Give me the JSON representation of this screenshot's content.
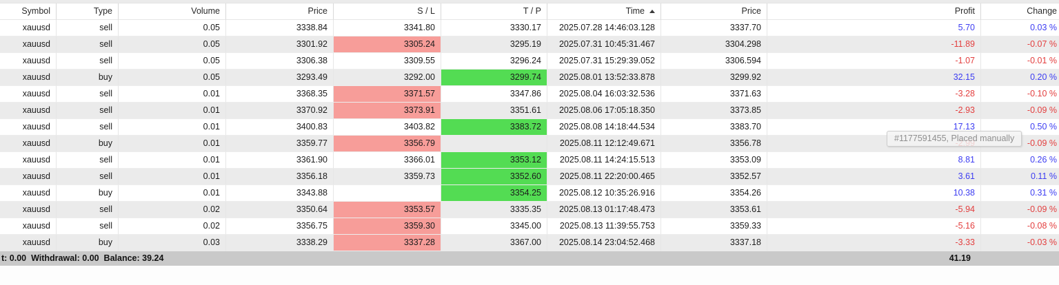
{
  "table": {
    "columns": [
      {
        "key": "symbol",
        "label": "Symbol"
      },
      {
        "key": "type",
        "label": "Type"
      },
      {
        "key": "volume",
        "label": "Volume"
      },
      {
        "key": "price",
        "label": "Price"
      },
      {
        "key": "sl",
        "label": "S / L"
      },
      {
        "key": "tp",
        "label": "T / P"
      },
      {
        "key": "time",
        "label": "Time",
        "sort": "asc"
      },
      {
        "key": "price2",
        "label": "Price"
      },
      {
        "key": "profit",
        "label": "Profit"
      },
      {
        "key": "change",
        "label": "Change"
      }
    ],
    "rows": [
      {
        "symbol": "xauusd",
        "type": "sell",
        "volume": "0.05",
        "price": "3338.84",
        "sl": "3341.80",
        "sl_hit": false,
        "tp": "3330.17",
        "tp_hit": false,
        "time": "2025.07.28 14:46:03.128",
        "price2": "3337.70",
        "profit": "5.70",
        "change": "0.03 %"
      },
      {
        "symbol": "xauusd",
        "type": "sell",
        "volume": "0.05",
        "price": "3301.92",
        "sl": "3305.24",
        "sl_hit": true,
        "tp": "3295.19",
        "tp_hit": false,
        "time": "2025.07.31 10:45:31.467",
        "price2": "3304.298",
        "profit": "-11.89",
        "change": "-0.07 %"
      },
      {
        "symbol": "xauusd",
        "type": "sell",
        "volume": "0.05",
        "price": "3306.38",
        "sl": "3309.55",
        "sl_hit": false,
        "tp": "3296.24",
        "tp_hit": false,
        "time": "2025.07.31 15:29:39.052",
        "price2": "3306.594",
        "profit": "-1.07",
        "change": "-0.01 %"
      },
      {
        "symbol": "xauusd",
        "type": "buy",
        "volume": "0.05",
        "price": "3293.49",
        "sl": "3292.00",
        "sl_hit": false,
        "tp": "3299.74",
        "tp_hit": true,
        "time": "2025.08.01 13:52:33.878",
        "price2": "3299.92",
        "profit": "32.15",
        "change": "0.20 %"
      },
      {
        "symbol": "xauusd",
        "type": "sell",
        "volume": "0.01",
        "price": "3368.35",
        "sl": "3371.57",
        "sl_hit": true,
        "tp": "3347.86",
        "tp_hit": false,
        "time": "2025.08.04 16:03:32.536",
        "price2": "3371.63",
        "profit": "-3.28",
        "change": "-0.10 %"
      },
      {
        "symbol": "xauusd",
        "type": "sell",
        "volume": "0.01",
        "price": "3370.92",
        "sl": "3373.91",
        "sl_hit": true,
        "tp": "3351.61",
        "tp_hit": false,
        "time": "2025.08.06 17:05:18.350",
        "price2": "3373.85",
        "profit": "-2.93",
        "change": "-0.09 %"
      },
      {
        "symbol": "xauusd",
        "type": "sell",
        "volume": "0.01",
        "price": "3400.83",
        "sl": "3403.82",
        "sl_hit": false,
        "tp": "3383.72",
        "tp_hit": true,
        "time": "2025.08.08 14:18:44.534",
        "price2": "3383.70",
        "profit": "17.13",
        "change": "0.50 %"
      },
      {
        "symbol": "xauusd",
        "type": "buy",
        "volume": "0.01",
        "price": "3359.77",
        "sl": "3356.79",
        "sl_hit": true,
        "tp": "",
        "tp_hit": false,
        "time": "2025.08.11 12:12:49.671",
        "price2": "3356.78",
        "profit": "-2.99",
        "change": "-0.09 %"
      },
      {
        "symbol": "xauusd",
        "type": "sell",
        "volume": "0.01",
        "price": "3361.90",
        "sl": "3366.01",
        "sl_hit": false,
        "tp": "3353.12",
        "tp_hit": true,
        "time": "2025.08.11 14:24:15.513",
        "price2": "3353.09",
        "profit": "8.81",
        "change": "0.26 %"
      },
      {
        "symbol": "xauusd",
        "type": "sell",
        "volume": "0.01",
        "price": "3356.18",
        "sl": "3359.73",
        "sl_hit": false,
        "tp": "3352.60",
        "tp_hit": true,
        "time": "2025.08.11 22:20:00.465",
        "price2": "3352.57",
        "profit": "3.61",
        "change": "0.11 %"
      },
      {
        "symbol": "xauusd",
        "type": "buy",
        "volume": "0.01",
        "price": "3343.88",
        "sl": "",
        "sl_hit": false,
        "tp": "3354.25",
        "tp_hit": true,
        "time": "2025.08.12 10:35:26.916",
        "price2": "3354.26",
        "profit": "10.38",
        "change": "0.31 %"
      },
      {
        "symbol": "xauusd",
        "type": "sell",
        "volume": "0.02",
        "price": "3350.64",
        "sl": "3353.57",
        "sl_hit": true,
        "tp": "3335.35",
        "tp_hit": false,
        "time": "2025.08.13 01:17:48.473",
        "price2": "3353.61",
        "profit": "-5.94",
        "change": "-0.09 %"
      },
      {
        "symbol": "xauusd",
        "type": "sell",
        "volume": "0.02",
        "price": "3356.75",
        "sl": "3359.30",
        "sl_hit": true,
        "tp": "3345.00",
        "tp_hit": false,
        "time": "2025.08.13 11:39:55.753",
        "price2": "3359.33",
        "profit": "-5.16",
        "change": "-0.08 %"
      },
      {
        "symbol": "xauusd",
        "type": "buy",
        "volume": "0.03",
        "price": "3338.29",
        "sl": "3337.28",
        "sl_hit": true,
        "tp": "3367.00",
        "tp_hit": false,
        "time": "2025.08.14 23:04:52.468",
        "price2": "3337.18",
        "profit": "-3.33",
        "change": "-0.03 %"
      }
    ]
  },
  "tooltip": {
    "text": "#1177591455, Placed manually"
  },
  "footer": {
    "left_text": "t: 0.00  Withdrawal: 0.00  Balance: 39.24",
    "profit_total": "41.19"
  },
  "colors": {
    "sl_highlight": "#f79d99",
    "tp_highlight": "#53dc53",
    "positive_text": "#3d3df2",
    "negative_text": "#e33e3e",
    "footer_bg": "#c9c9c9"
  }
}
